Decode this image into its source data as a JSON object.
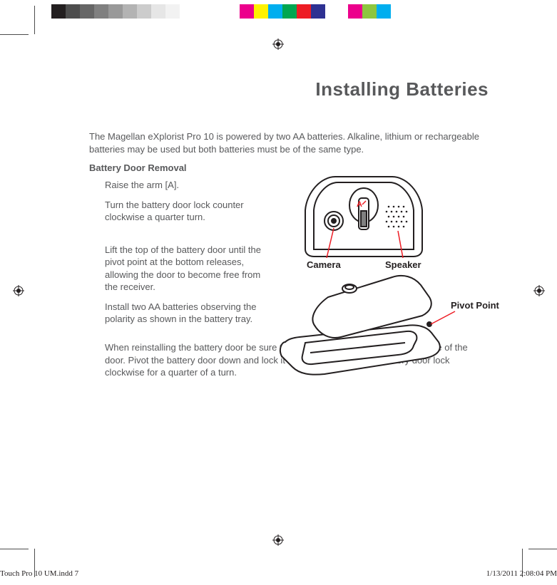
{
  "colorbar": {
    "swatch_width": 20,
    "colors": [
      "#231f20",
      "#4d4d4d",
      "#666666",
      "#808080",
      "#999999",
      "#b3b3b3",
      "#cccccc",
      "#e6e6e6",
      "#f2f2f2",
      "#ffffff",
      "#ffffff",
      "#ffffff",
      "#ec008c",
      "#fff200",
      "#00aeef",
      "#00a651",
      "#ed1c24",
      "#2e3192",
      "#ffffff",
      "#ec008c",
      "#8dc63f",
      "#00aeef"
    ]
  },
  "title": "Installing Batteries",
  "intro": "The Magellan eXplorist Pro 10 is powered by two AA batteries.  Alkaline, lithium or rechargeable batteries may be used but both batteries must be of the same type.",
  "subhead": "Battery Door Removal",
  "steps": {
    "s1": "Raise the arm [A].",
    "s2": "Turn the battery door lock counter clockwise a quarter turn.",
    "s3": "Lift the top of the battery door until the pivot point at the bottom releases, allowing the door to become free from the receiver.",
    "s4": "Install two AA batteries observing the polarity as shown in the battery tray.",
    "s5": "When reinstalling the battery door be sure to first insert the hinge point at the base of the door.  Pivot the battery door down and lock it in place by turning the battery door lock clockwise for a quarter of a turn."
  },
  "labels": {
    "camera": "Camera",
    "speaker": "Speaker",
    "pivot": "Pivot Point",
    "a": "A"
  },
  "footer": {
    "file": "Touch Pro 10 UM.indd   7",
    "ts": "1/13/2011   2:08:04 PM"
  },
  "colors": {
    "text": "#58595b",
    "stroke": "#231f20",
    "callout": "#ed1c24"
  }
}
